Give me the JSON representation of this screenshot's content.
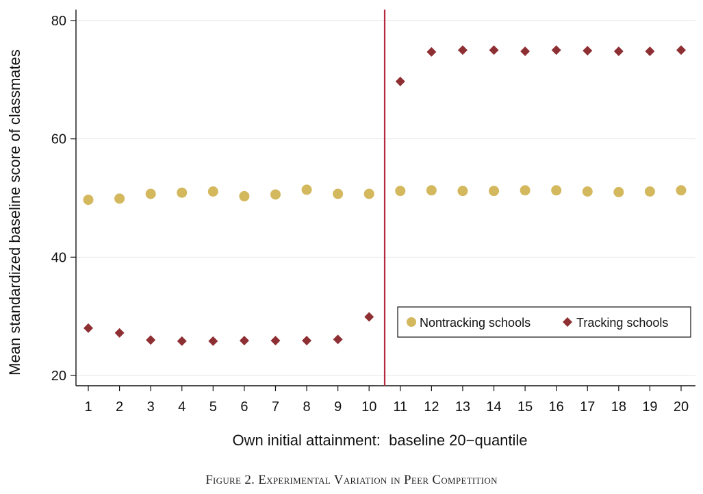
{
  "caption": "Figure 2. Experimental Variation in Peer Competition",
  "chart_data": {
    "type": "scatter",
    "title": "",
    "xlabel": "Own initial attainment:  baseline 20−quantile",
    "ylabel": "Mean standardized baseline score of classmates",
    "x": [
      1,
      2,
      3,
      4,
      5,
      6,
      7,
      8,
      9,
      10,
      11,
      12,
      13,
      14,
      15,
      16,
      17,
      18,
      19,
      20
    ],
    "xlim": [
      0.7,
      20.4
    ],
    "ylim": [
      18,
      82
    ],
    "yticks": [
      20,
      40,
      60,
      80
    ],
    "grid": true,
    "cutoff_x": 10.5,
    "cutoff_color": "#b5283e",
    "legend_position": "lower-right",
    "series": [
      {
        "name": "Nontracking schools",
        "marker": "circle",
        "color": "#d4b85e",
        "values": [
          49.7,
          49.9,
          50.7,
          50.9,
          51.1,
          50.3,
          50.6,
          51.4,
          50.7,
          50.7,
          51.2,
          51.3,
          51.2,
          51.2,
          51.3,
          51.3,
          51.1,
          51.0,
          51.1,
          51.3
        ]
      },
      {
        "name": "Tracking schools",
        "marker": "diamond",
        "color": "#8e2f33",
        "values": [
          28.0,
          27.2,
          26.0,
          25.8,
          25.8,
          25.9,
          25.9,
          25.9,
          26.1,
          29.9,
          69.7,
          74.7,
          75.0,
          75.0,
          74.8,
          75.0,
          74.9,
          74.8,
          74.8,
          75.0
        ]
      }
    ]
  }
}
